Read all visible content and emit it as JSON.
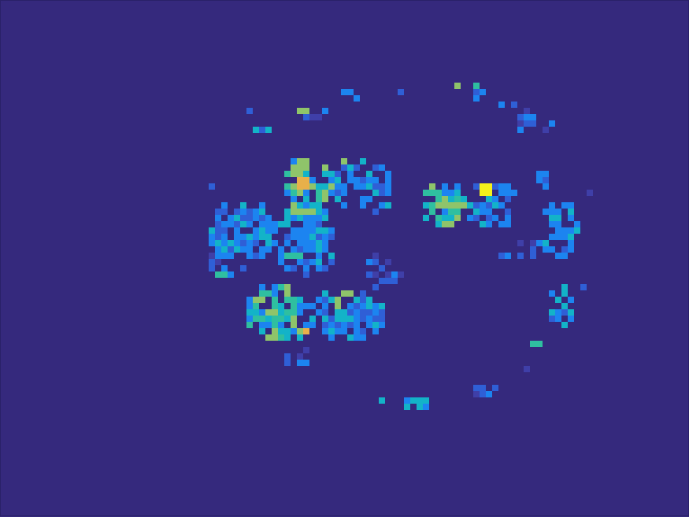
{
  "image": {
    "kind": "heatmap-slice",
    "colormap": "parula",
    "palette": {
      "background": "#35297d",
      "low_blue": "#3f3fa8",
      "mid_blue": "#2f5fd6",
      "bright_blue": "#1c84f0",
      "cyan": "#13b3c8",
      "teal": "#2fbfa0",
      "green": "#8fc46a",
      "orange": "#e8b04a",
      "yellow": "#f5f01a"
    }
  }
}
